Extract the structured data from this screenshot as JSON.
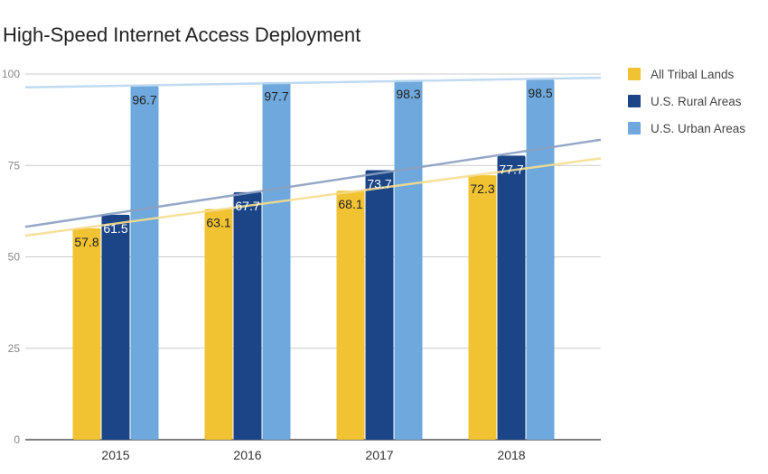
{
  "chart_data": {
    "type": "bar",
    "title": "High-Speed Internet Access Deployment",
    "categories": [
      "2015",
      "2016",
      "2017",
      "2018"
    ],
    "series": [
      {
        "name": "All Tribal Lands",
        "values": [
          57.8,
          63.1,
          68.1,
          72.3
        ],
        "color": "#f1c232",
        "trend_color": "#f5dd8f"
      },
      {
        "name": "U.S. Rural Areas",
        "values": [
          61.5,
          67.7,
          73.7,
          77.7
        ],
        "color": "#1c4587",
        "trend_color": "#8a9fc1"
      },
      {
        "name": "U.S. Urban Areas",
        "values": [
          96.7,
          97.7,
          98.3,
          98.5
        ],
        "color": "#6fa8dc",
        "trend_color": "#b8d6ef"
      }
    ],
    "y_ticks": [
      0,
      25,
      50,
      75,
      100
    ],
    "ylim": [
      0,
      100
    ],
    "xlabel": "",
    "ylabel": "",
    "grid": true,
    "trendlines": true,
    "legend_position": "right"
  }
}
